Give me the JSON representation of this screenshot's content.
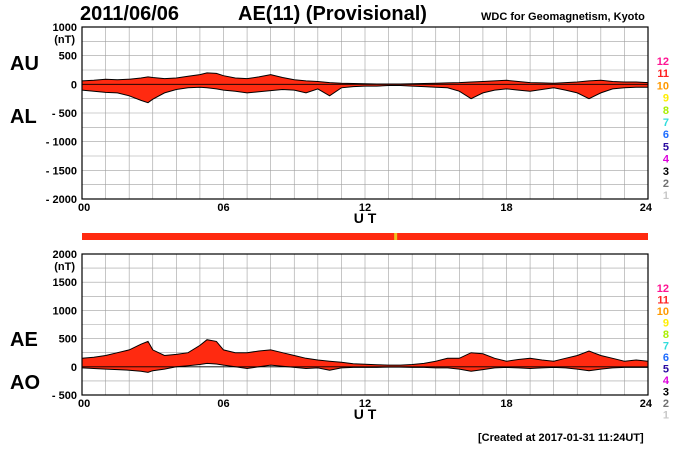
{
  "header": {
    "date": "2011/06/06",
    "title": "AE(11) (Provisional)",
    "organization": "WDC for Geomagnetism, Kyoto"
  },
  "footer": {
    "created": "[Created at 2017-01-31 11:24UT]"
  },
  "colors": {
    "fill": "#ff2a10",
    "outline": "#000000",
    "grid": "#a0a0a0",
    "station_bar": "#ff2a10",
    "station_bar_marker": "#f0c020"
  },
  "station_bar": {
    "marker_ut": 13.3
  },
  "legend_levels": [
    {
      "label": "12",
      "color": "#ff1493"
    },
    {
      "label": "11",
      "color": "#ff2020"
    },
    {
      "label": "10",
      "color": "#ff9900"
    },
    {
      "label": "9",
      "color": "#ffee00"
    },
    {
      "label": "8",
      "color": "#aaee00"
    },
    {
      "label": "7",
      "color": "#33dddd"
    },
    {
      "label": "6",
      "color": "#1e6cff"
    },
    {
      "label": "5",
      "color": "#2a0aa0"
    },
    {
      "label": "4",
      "color": "#dd00dd"
    },
    {
      "label": "3",
      "color": "#000000"
    },
    {
      "label": "2",
      "color": "#707070"
    },
    {
      "label": "1",
      "color": "#c8c8c8"
    }
  ],
  "chart_data": [
    {
      "type": "area",
      "name_upper": "AU",
      "name_lower": "AL",
      "unit": "(nT)",
      "xlabel": "U T",
      "x_ticks": [
        "00",
        "06",
        "12",
        "18",
        "24"
      ],
      "xlim": [
        0,
        24
      ],
      "ylim": [
        -2000,
        1000
      ],
      "y_ticks": [
        "1000",
        "500",
        "0",
        "- 500",
        "- 1000",
        "- 1500",
        "- 2000"
      ],
      "grid": true,
      "x": [
        0,
        0.5,
        1,
        1.5,
        2,
        2.5,
        2.8,
        3,
        3.5,
        4,
        4.5,
        5,
        5.3,
        5.7,
        6,
        6.5,
        7,
        7.5,
        8,
        8.5,
        9,
        9.5,
        10,
        10.5,
        11,
        11.5,
        12,
        12.5,
        13,
        13.5,
        14,
        14.5,
        15,
        15.5,
        16,
        16.5,
        17,
        17.5,
        18,
        18.5,
        19,
        19.5,
        20,
        20.5,
        21,
        21.5,
        22,
        22.5,
        23,
        23.5,
        24
      ],
      "upper": [
        60,
        70,
        90,
        80,
        90,
        110,
        130,
        120,
        100,
        110,
        140,
        170,
        200,
        190,
        150,
        110,
        100,
        130,
        170,
        120,
        80,
        60,
        50,
        30,
        20,
        15,
        10,
        5,
        5,
        5,
        10,
        15,
        20,
        25,
        30,
        40,
        50,
        60,
        70,
        50,
        30,
        25,
        20,
        30,
        40,
        60,
        70,
        50,
        40,
        40,
        30
      ],
      "lower": [
        -100,
        -120,
        -140,
        -150,
        -200,
        -280,
        -320,
        -260,
        -150,
        -90,
        -60,
        -50,
        -60,
        -80,
        -100,
        -120,
        -150,
        -130,
        -110,
        -90,
        -100,
        -150,
        -80,
        -200,
        -60,
        -40,
        -30,
        -30,
        -20,
        -20,
        -30,
        -40,
        -50,
        -60,
        -120,
        -250,
        -150,
        -100,
        -80,
        -100,
        -120,
        -90,
        -60,
        -100,
        -150,
        -250,
        -150,
        -80,
        -60,
        -50,
        -50
      ]
    },
    {
      "type": "area",
      "name_upper": "AE",
      "name_lower": "AO",
      "unit": "(nT)",
      "xlabel": "U T",
      "x_ticks": [
        "00",
        "06",
        "12",
        "18",
        "24"
      ],
      "xlim": [
        0,
        24
      ],
      "ylim": [
        -500,
        2000
      ],
      "y_ticks": [
        "2000",
        "1500",
        "1000",
        "500",
        "0",
        "- 500"
      ],
      "grid": true,
      "x": [
        0,
        0.5,
        1,
        1.5,
        2,
        2.5,
        2.8,
        3,
        3.5,
        4,
        4.5,
        5,
        5.3,
        5.7,
        6,
        6.5,
        7,
        7.5,
        8,
        8.5,
        9,
        9.5,
        10,
        10.5,
        11,
        11.5,
        12,
        12.5,
        13,
        13.5,
        14,
        14.5,
        15,
        15.5,
        16,
        16.5,
        17,
        17.5,
        18,
        18.5,
        19,
        19.5,
        20,
        20.5,
        21,
        21.5,
        22,
        22.5,
        23,
        23.5,
        24
      ],
      "upper": [
        150,
        170,
        200,
        250,
        300,
        400,
        450,
        300,
        200,
        220,
        250,
        380,
        480,
        450,
        300,
        250,
        250,
        280,
        300,
        250,
        200,
        150,
        120,
        100,
        80,
        55,
        45,
        35,
        30,
        30,
        40,
        60,
        100,
        150,
        150,
        250,
        230,
        150,
        100,
        130,
        150,
        120,
        100,
        150,
        200,
        280,
        200,
        150,
        100,
        120,
        100
      ],
      "lower": [
        -20,
        -30,
        -40,
        -50,
        -60,
        -80,
        -100,
        -70,
        -40,
        0,
        20,
        40,
        60,
        50,
        30,
        0,
        -30,
        0,
        30,
        10,
        -10,
        -30,
        -20,
        -60,
        -20,
        -10,
        -10,
        -10,
        -5,
        -5,
        -10,
        -10,
        -20,
        -20,
        -40,
        -80,
        -50,
        -20,
        -10,
        -20,
        -30,
        -20,
        -10,
        -20,
        -40,
        -70,
        -40,
        -20,
        -10,
        -10,
        -10
      ]
    }
  ]
}
